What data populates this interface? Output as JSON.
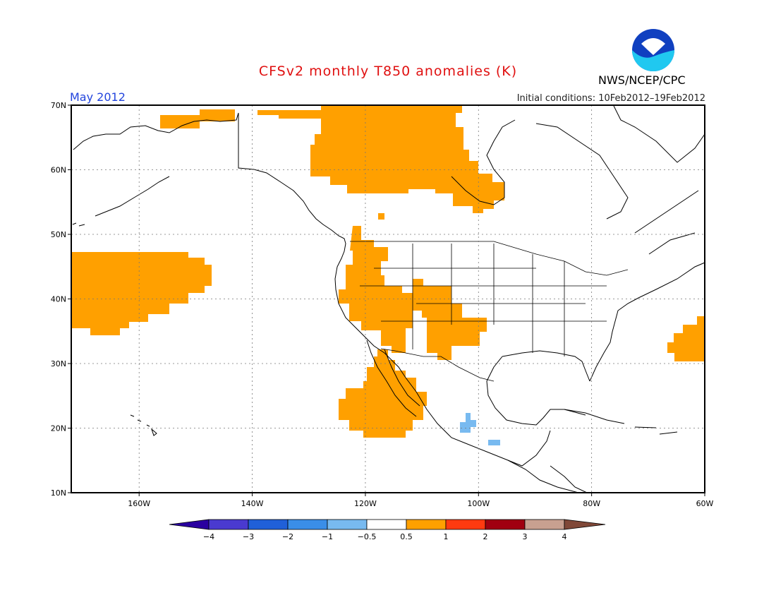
{
  "title": "CFSv2 monthly T850 anomalies (K)",
  "month": "May 2012",
  "initial_conditions": "Initial conditions: 10Feb2012–19Feb2012",
  "agency": "NWS/NCEP/CPC",
  "logo_text": "NOAA",
  "map": {
    "lon_range": [
      -172,
      -60
    ],
    "lat_range": [
      10,
      70
    ],
    "lat_ticks": [
      "70N",
      "60N",
      "50N",
      "40N",
      "30N",
      "20N",
      "10N"
    ],
    "lon_ticks": [
      "160W",
      "140W",
      "120W",
      "100W",
      "80W",
      "60W"
    ]
  },
  "legend": {
    "levels": [
      "−4",
      "−3",
      "−2",
      "−1",
      "−0.5",
      "0.5",
      "1",
      "2",
      "3",
      "4"
    ],
    "colors": [
      "#2a00a0",
      "#4a3ad0",
      "#2060d8",
      "#3a8ee8",
      "#78baf0",
      "#ffffff",
      "#ffa000",
      "#ff3a10",
      "#a00010",
      "#c8a090",
      "#804838"
    ]
  }
}
